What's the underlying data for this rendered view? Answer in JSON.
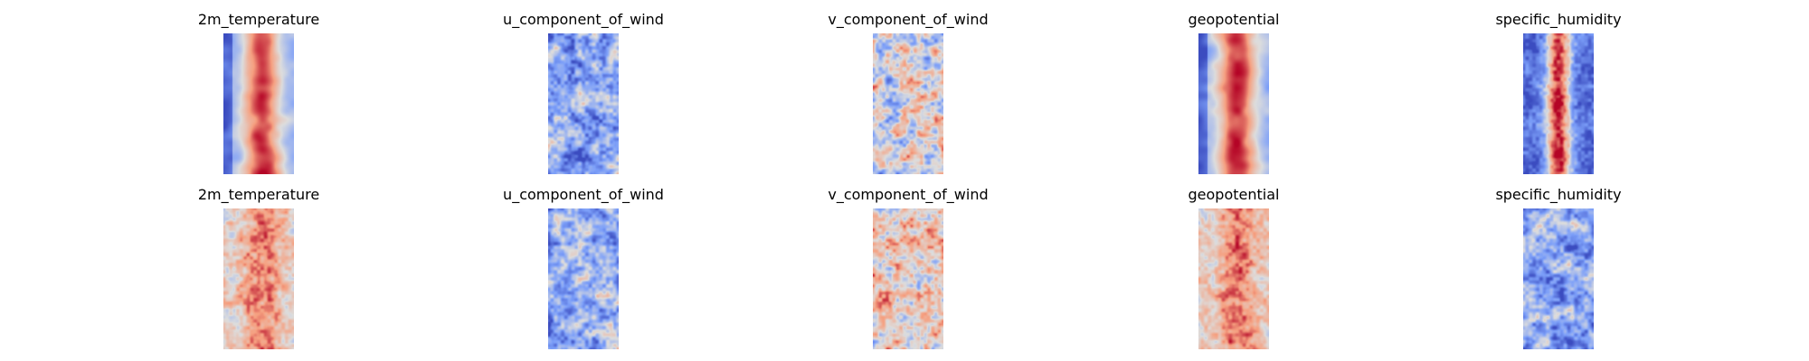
{
  "chart_data": [
    {
      "type": "heatmap",
      "title": "2m_temperature",
      "colormap": "coolwarm",
      "row": 1,
      "col": 1,
      "seed": 11,
      "pattern": "warm-center"
    },
    {
      "type": "heatmap",
      "title": "u_component_of_wind",
      "colormap": "coolwarm",
      "row": 1,
      "col": 2,
      "seed": 23,
      "pattern": "cool-noisy"
    },
    {
      "type": "heatmap",
      "title": "v_component_of_wind",
      "colormap": "coolwarm",
      "row": 1,
      "col": 3,
      "seed": 37,
      "pattern": "neutral-noisy"
    },
    {
      "type": "heatmap",
      "title": "geopotential",
      "colormap": "coolwarm",
      "row": 1,
      "col": 4,
      "seed": 41,
      "pattern": "warm-center"
    },
    {
      "type": "heatmap",
      "title": "specific_humidity",
      "colormap": "coolwarm",
      "row": 1,
      "col": 5,
      "seed": 53,
      "pattern": "humid-band"
    },
    {
      "type": "heatmap",
      "title": "2m_temperature",
      "colormap": "coolwarm",
      "row": 2,
      "col": 1,
      "seed": 67,
      "pattern": "warm-noisy"
    },
    {
      "type": "heatmap",
      "title": "u_component_of_wind",
      "colormap": "coolwarm",
      "row": 2,
      "col": 2,
      "seed": 71,
      "pattern": "cool-noisy"
    },
    {
      "type": "heatmap",
      "title": "v_component_of_wind",
      "colormap": "coolwarm",
      "row": 2,
      "col": 3,
      "seed": 83,
      "pattern": "neutral-warm"
    },
    {
      "type": "heatmap",
      "title": "geopotential",
      "colormap": "coolwarm",
      "row": 2,
      "col": 4,
      "seed": 97,
      "pattern": "warm-noisy"
    },
    {
      "type": "heatmap",
      "title": "specific_humidity",
      "colormap": "coolwarm",
      "row": 2,
      "col": 5,
      "seed": 101,
      "pattern": "cool-noisy"
    }
  ]
}
